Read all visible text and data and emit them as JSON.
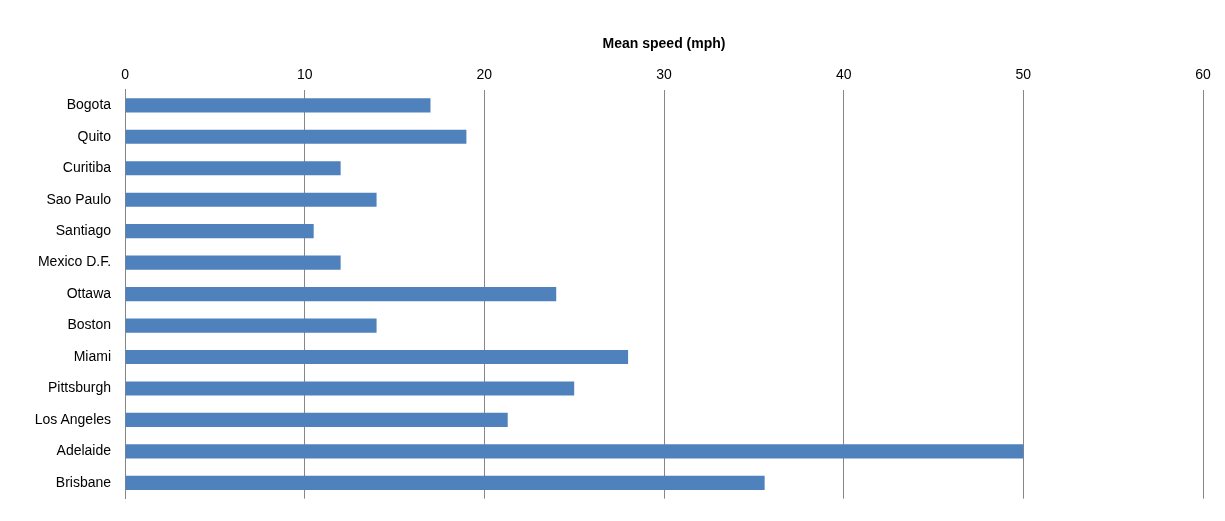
{
  "chart_data": {
    "type": "bar",
    "orientation": "horizontal",
    "xlabel": "Mean speed (mph)",
    "categories": [
      "Bogota",
      "Quito",
      "Curitiba",
      "Sao Paulo",
      "Santiago",
      "Mexico D.F.",
      "Ottawa",
      "Boston",
      "Miami",
      "Pittsburgh",
      "Los Angeles",
      "Adelaide",
      "Brisbane"
    ],
    "values": [
      17,
      19,
      12,
      14,
      10.5,
      12,
      24,
      14,
      28,
      25,
      21.3,
      50,
      35.6
    ],
    "color": "#4f81bd",
    "xlim": [
      0,
      60
    ],
    "xticks": [
      0,
      10,
      20,
      30,
      40,
      50,
      60
    ],
    "grid": "x",
    "legend": false
  }
}
